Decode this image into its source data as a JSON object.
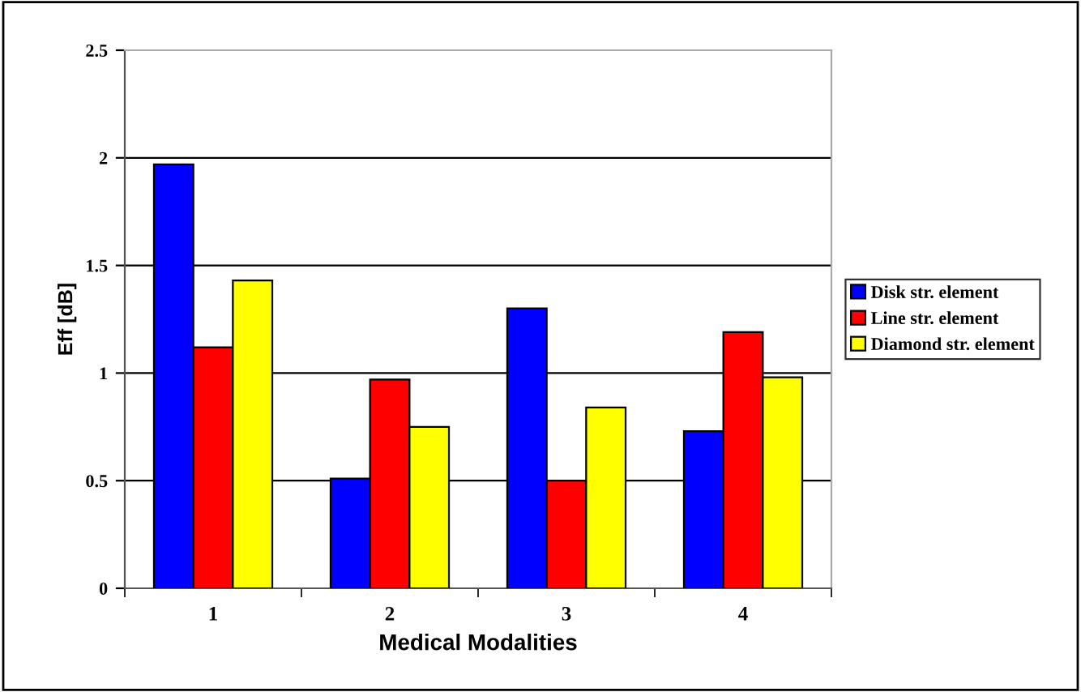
{
  "chart_data": {
    "type": "bar",
    "xlabel": "Medical Modalities",
    "ylabel": "Eff [dB]",
    "categories": [
      "1",
      "2",
      "3",
      "4"
    ],
    "series": [
      {
        "name": "Disk str. element",
        "color": "#0000ff",
        "values": [
          1.97,
          0.51,
          1.3,
          0.73
        ]
      },
      {
        "name": "Line str. element",
        "color": "#ff0000",
        "values": [
          1.12,
          0.97,
          0.5,
          1.19
        ]
      },
      {
        "name": "Diamond str. element",
        "color": "#ffff00",
        "values": [
          1.43,
          0.75,
          0.84,
          0.98
        ]
      }
    ],
    "ylim": [
      0,
      2.5
    ],
    "yticks": [
      0,
      0.5,
      1,
      1.5,
      2,
      2.5
    ],
    "grid": "y",
    "legend": "right"
  }
}
